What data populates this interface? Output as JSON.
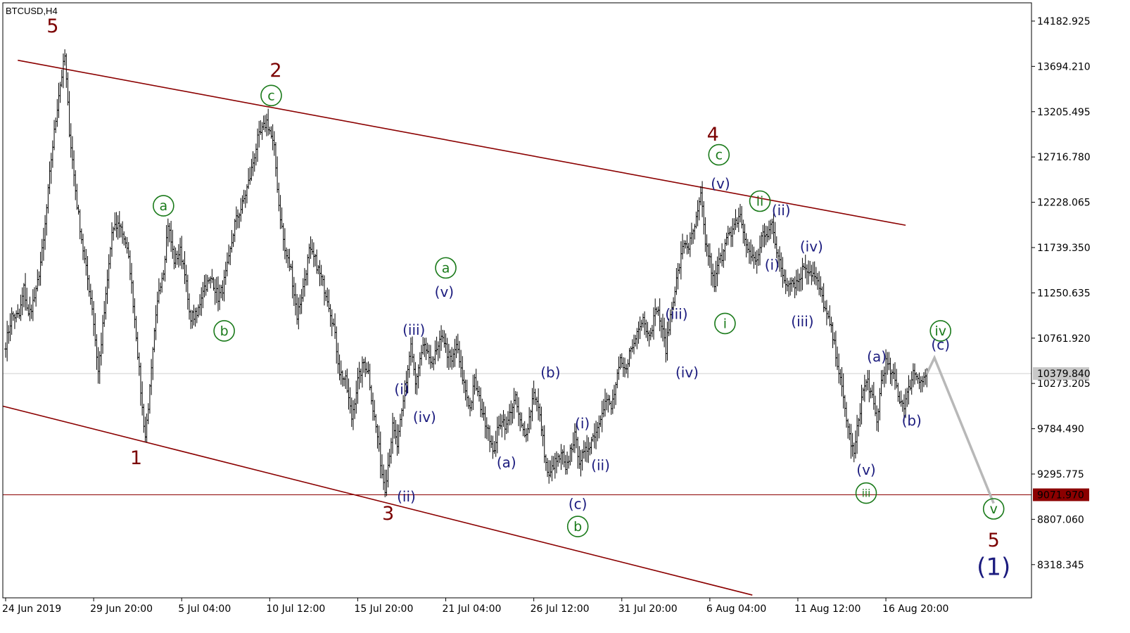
{
  "symbol_label": "BTCUSD,H4",
  "chart_data": {
    "type": "candlestick",
    "title": "",
    "xlabel": "",
    "ylabel": "",
    "ylim": [
      7960,
      14380
    ],
    "grid": false,
    "legend": "none",
    "colors": {
      "bars": "#000000",
      "channel": "#8b0000",
      "primary_wave": "#7b0000",
      "minor_wave": "#1b1b7e",
      "minute_wave": "#1a7a1a",
      "projection": "#b8b8b8",
      "current_price_line": "#d0d0d0",
      "support_line": "#8b0000",
      "support_tag": "#8b0000"
    },
    "y_ticks": [
      "14182.925",
      "13694.210",
      "13205.495",
      "12716.780",
      "12228.065",
      "11739.350",
      "11250.635",
      "10761.920",
      "10273.205",
      "9784.490",
      "9295.775",
      "8807.060",
      "8318.345"
    ],
    "x_ticks": [
      "24 Jun 2019",
      "29 Jun 20:00",
      "5 Jul 04:00",
      "10 Jul 12:00",
      "15 Jul 20:00",
      "21 Jul 04:00",
      "26 Jul 12:00",
      "31 Jul 20:00",
      "6 Aug 04:00",
      "11 Aug 12:00",
      "16 Aug 20:00"
    ],
    "current_price": "10379.840",
    "support_level": "9071.970",
    "price_path": [
      [
        0,
        10700
      ],
      [
        4,
        11000
      ],
      [
        9,
        11000
      ],
      [
        12,
        11300
      ],
      [
        15,
        11000
      ],
      [
        20,
        11250
      ],
      [
        25,
        11800
      ],
      [
        30,
        12700
      ],
      [
        35,
        13400
      ],
      [
        39,
        13800
      ],
      [
        42,
        13000
      ],
      [
        47,
        12200
      ],
      [
        52,
        11600
      ],
      [
        57,
        11100
      ],
      [
        61,
        10400
      ],
      [
        66,
        11200
      ],
      [
        70,
        11900
      ],
      [
        75,
        12000
      ],
      [
        79,
        11800
      ],
      [
        82,
        11500
      ],
      [
        86,
        10800
      ],
      [
        90,
        10000
      ],
      [
        92,
        9700
      ],
      [
        95,
        10200
      ],
      [
        98,
        10800
      ],
      [
        101,
        11300
      ],
      [
        104,
        11500
      ],
      [
        107,
        12000
      ],
      [
        111,
        11600
      ],
      [
        115,
        11700
      ],
      [
        118,
        11500
      ],
      [
        121,
        11000
      ],
      [
        126,
        11000
      ],
      [
        130,
        11300
      ],
      [
        136,
        11400
      ],
      [
        140,
        11200
      ],
      [
        143,
        11300
      ],
      [
        147,
        11600
      ],
      [
        151,
        12000
      ],
      [
        156,
        12200
      ],
      [
        161,
        12500
      ],
      [
        166,
        12900
      ],
      [
        172,
        13100
      ],
      [
        174,
        13000
      ],
      [
        177,
        12800
      ],
      [
        180,
        12200
      ],
      [
        184,
        11700
      ],
      [
        188,
        11500
      ],
      [
        192,
        11000
      ],
      [
        196,
        11300
      ],
      [
        200,
        11700
      ],
      [
        204,
        11600
      ],
      [
        208,
        11400
      ],
      [
        212,
        11200
      ],
      [
        216,
        10900
      ],
      [
        220,
        10400
      ],
      [
        224,
        10300
      ],
      [
        228,
        9900
      ],
      [
        232,
        10300
      ],
      [
        236,
        10500
      ],
      [
        239,
        10400
      ],
      [
        242,
        10000
      ],
      [
        245,
        9700
      ],
      [
        248,
        9300
      ],
      [
        250,
        9150
      ],
      [
        252,
        9400
      ],
      [
        255,
        9800
      ],
      [
        258,
        9600
      ],
      [
        261,
        9950
      ],
      [
        264,
        10300
      ],
      [
        267,
        10700
      ],
      [
        270,
        10250
      ],
      [
        273,
        10500
      ],
      [
        276,
        10700
      ],
      [
        279,
        10500
      ],
      [
        282,
        10550
      ],
      [
        285,
        10650
      ],
      [
        288,
        10800
      ],
      [
        291,
        10600
      ],
      [
        294,
        10500
      ],
      [
        297,
        10700
      ],
      [
        300,
        10400
      ],
      [
        303,
        10200
      ],
      [
        306,
        10000
      ],
      [
        309,
        10300
      ],
      [
        312,
        10100
      ],
      [
        315,
        9900
      ],
      [
        318,
        9800
      ],
      [
        321,
        9500
      ],
      [
        324,
        9750
      ],
      [
        327,
        9900
      ],
      [
        330,
        9800
      ],
      [
        333,
        10000
      ],
      [
        336,
        10100
      ],
      [
        339,
        9850
      ],
      [
        342,
        9700
      ],
      [
        345,
        9900
      ],
      [
        348,
        10200
      ],
      [
        351,
        10000
      ],
      [
        353,
        9800
      ],
      [
        356,
        9400
      ],
      [
        358,
        9250
      ],
      [
        361,
        9400
      ],
      [
        364,
        9450
      ],
      [
        367,
        9500
      ],
      [
        369,
        9300
      ],
      [
        372,
        9550
      ],
      [
        375,
        9700
      ],
      [
        378,
        9450
      ],
      [
        381,
        9500
      ],
      [
        384,
        9600
      ],
      [
        387,
        9700
      ],
      [
        390,
        9800
      ],
      [
        393,
        10000
      ],
      [
        396,
        10100
      ],
      [
        399,
        10000
      ],
      [
        402,
        10250
      ],
      [
        405,
        10500
      ],
      [
        408,
        10400
      ],
      [
        411,
        10600
      ],
      [
        414,
        10700
      ],
      [
        417,
        10900
      ],
      [
        420,
        11000
      ],
      [
        423,
        10800
      ],
      [
        426,
        10900
      ],
      [
        429,
        11100
      ],
      [
        432,
        10900
      ],
      [
        435,
        10650
      ],
      [
        438,
        11000
      ],
      [
        441,
        11300
      ],
      [
        444,
        11550
      ],
      [
        447,
        11800
      ],
      [
        450,
        11750
      ],
      [
        453,
        11900
      ],
      [
        456,
        12100
      ],
      [
        458,
        12300
      ],
      [
        461,
        11800
      ],
      [
        464,
        11600
      ],
      [
        467,
        11300
      ],
      [
        469,
        11550
      ],
      [
        472,
        11650
      ],
      [
        475,
        11900
      ],
      [
        478,
        11850
      ],
      [
        481,
        12000
      ],
      [
        484,
        12100
      ],
      [
        487,
        11800
      ],
      [
        490,
        11700
      ],
      [
        493,
        11600
      ],
      [
        496,
        11650
      ],
      [
        499,
        11900
      ],
      [
        502,
        11850
      ],
      [
        505,
        12050
      ],
      [
        508,
        11700
      ],
      [
        511,
        11500
      ],
      [
        514,
        11350
      ],
      [
        517,
        11400
      ],
      [
        520,
        11350
      ],
      [
        523,
        11400
      ],
      [
        526,
        11550
      ],
      [
        529,
        11500
      ],
      [
        532,
        11450
      ],
      [
        535,
        11350
      ],
      [
        538,
        11200
      ],
      [
        541,
        11000
      ],
      [
        544,
        10850
      ],
      [
        547,
        10600
      ],
      [
        550,
        10300
      ],
      [
        553,
        10000
      ],
      [
        556,
        9700
      ],
      [
        559,
        9500
      ],
      [
        562,
        9900
      ],
      [
        565,
        10200
      ],
      [
        568,
        10300
      ],
      [
        571,
        10100
      ],
      [
        574,
        9850
      ],
      [
        577,
        10300
      ],
      [
        580,
        10500
      ],
      [
        583,
        10400
      ],
      [
        586,
        10300
      ],
      [
        589,
        10100
      ],
      [
        592,
        10050
      ],
      [
        595,
        10200
      ],
      [
        598,
        10400
      ],
      [
        601,
        10350
      ],
      [
        604,
        10300
      ],
      [
        607,
        10380
      ]
    ],
    "projection": [
      [
        607,
        10380
      ],
      [
        612,
        10550
      ],
      [
        651,
        8980
      ]
    ],
    "channel_lines": [
      {
        "name": "upper",
        "from": [
          8,
          13760
        ],
        "to": [
          593,
          11980
        ]
      },
      {
        "name": "lower",
        "from": [
          -12,
          10070
        ],
        "to": [
          492,
          7990
        ]
      }
    ],
    "wave_labels": [
      {
        "text": "5",
        "level": "primary",
        "x": 31,
        "price": 14120
      },
      {
        "text": "2",
        "level": "primary",
        "x": 178,
        "price": 13640
      },
      {
        "text": "4",
        "level": "primary",
        "x": 466,
        "price": 12950
      },
      {
        "text": "1",
        "level": "primary",
        "x": 86,
        "price": 9460
      },
      {
        "text": "3",
        "level": "primary",
        "x": 252,
        "price": 8860
      },
      {
        "text": "5",
        "level": "primary",
        "x": 651,
        "price": 8570
      },
      {
        "text": "(1)",
        "level": "minor",
        "x": 651,
        "price": 8280
      },
      {
        "text": "c",
        "level": "minute",
        "x": 175,
        "price": 13380
      },
      {
        "text": "a",
        "level": "minute",
        "x": 104,
        "price": 12190
      },
      {
        "text": "b",
        "level": "minute",
        "x": 144,
        "price": 10840
      },
      {
        "text": "a",
        "level": "minute",
        "x": 290,
        "price": 11520
      },
      {
        "text": "b",
        "level": "minute",
        "x": 377,
        "price": 8730
      },
      {
        "text": "c",
        "level": "minute",
        "x": 470,
        "price": 12740
      },
      {
        "text": "ii",
        "level": "minute",
        "x": 497,
        "price": 12240
      },
      {
        "text": "i",
        "level": "minute",
        "x": 474,
        "price": 10920
      },
      {
        "text": "iii",
        "level": "minute",
        "x": 567,
        "price": 9090
      },
      {
        "text": "iv",
        "level": "minute",
        "x": 616,
        "price": 10840
      },
      {
        "text": "v",
        "level": "minute",
        "x": 651,
        "price": 8920
      },
      {
        "text": "(v)",
        "level": "minor",
        "x": 289,
        "price": 11250
      },
      {
        "text": "(iii)",
        "level": "minor",
        "x": 269,
        "price": 10840
      },
      {
        "text": "(i)",
        "level": "minor",
        "x": 261,
        "price": 10200
      },
      {
        "text": "(iv)",
        "level": "minor",
        "x": 276,
        "price": 9900
      },
      {
        "text": "(ii)",
        "level": "minor",
        "x": 264,
        "price": 9040
      },
      {
        "text": "(b)",
        "level": "minor",
        "x": 359,
        "price": 10380
      },
      {
        "text": "(a)",
        "level": "minor",
        "x": 330,
        "price": 9410
      },
      {
        "text": "(i)",
        "level": "minor",
        "x": 380,
        "price": 9830
      },
      {
        "text": "(ii)",
        "level": "minor",
        "x": 392,
        "price": 9380
      },
      {
        "text": "(c)",
        "level": "minor",
        "x": 377,
        "price": 8960
      },
      {
        "text": "(v)",
        "level": "minor",
        "x": 471,
        "price": 12420
      },
      {
        "text": "(iii)",
        "level": "minor",
        "x": 442,
        "price": 11010
      },
      {
        "text": "(iv)",
        "level": "minor",
        "x": 449,
        "price": 10380
      },
      {
        "text": "(ii)",
        "level": "minor",
        "x": 511,
        "price": 12130
      },
      {
        "text": "(i)",
        "level": "minor",
        "x": 505,
        "price": 11540
      },
      {
        "text": "(iv)",
        "level": "minor",
        "x": 531,
        "price": 11740
      },
      {
        "text": "(iii)",
        "level": "minor",
        "x": 525,
        "price": 10930
      },
      {
        "text": "(a)",
        "level": "minor",
        "x": 574,
        "price": 10550
      },
      {
        "text": "(b)",
        "level": "minor",
        "x": 597,
        "price": 9860
      },
      {
        "text": "(v)",
        "level": "minor",
        "x": 567,
        "price": 9330
      },
      {
        "text": "(c)",
        "level": "minor",
        "x": 616,
        "price": 10680
      }
    ]
  }
}
